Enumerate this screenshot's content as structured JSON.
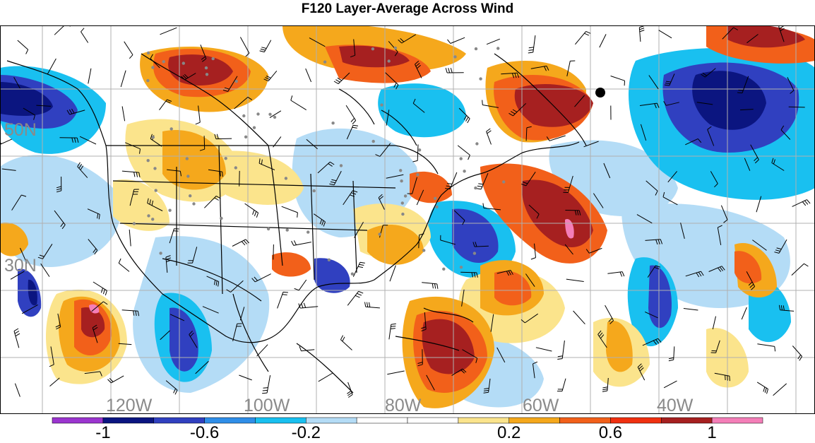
{
  "title": "F120 Layer-Average Across Wind",
  "lat_labels": [
    "50N",
    "30N"
  ],
  "lon_labels": [
    "120W",
    "100W",
    "80W",
    "60W",
    "40W"
  ],
  "colorbar": {
    "colors": [
      "#9b35cf",
      "#0b1580",
      "#3040c0",
      "#2f8ee8",
      "#19c0f0",
      "#b4dcf6",
      "#ffffff",
      "#ffffff",
      "#fbe48c",
      "#f5a81c",
      "#f2601a",
      "#f03010",
      "#a62020",
      "#f47eb8"
    ],
    "tick_labels": [
      "-1",
      "-0.6",
      "-0.2",
      "0.2",
      "0.6",
      "1"
    ]
  },
  "marker": {
    "lat": 47.5,
    "lon": -49
  }
}
